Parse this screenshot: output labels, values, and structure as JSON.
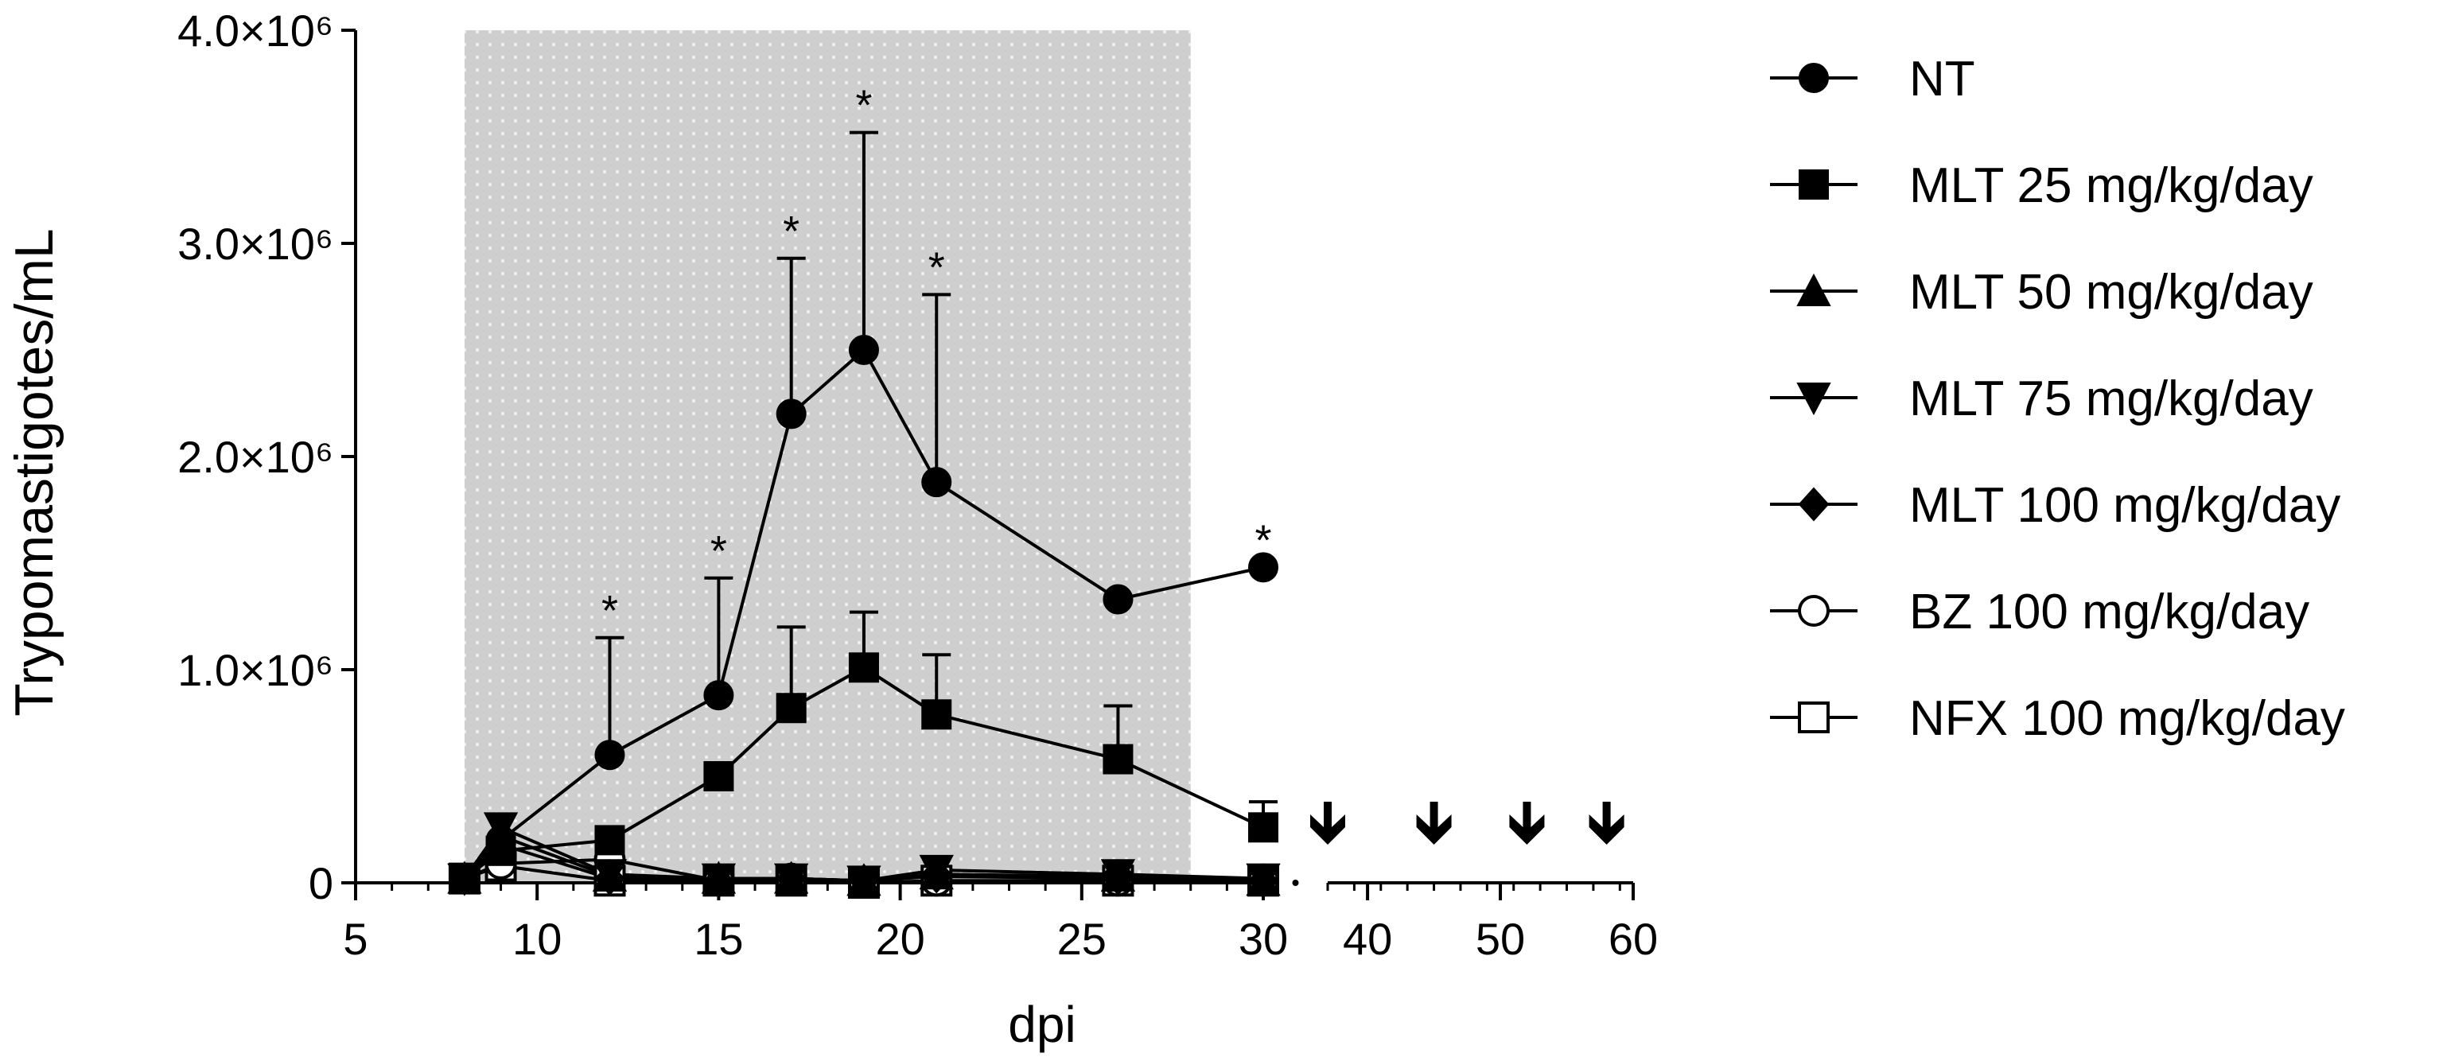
{
  "chart_data": {
    "type": "line",
    "title": "",
    "xlabel": "dpi",
    "ylabel": "Trypomastigotes/mL",
    "ylim": [
      0,
      4000000
    ],
    "y_ticks": [
      {
        "value": 0,
        "label": "0"
      },
      {
        "value": 1000000,
        "label": "1.0×10⁶"
      },
      {
        "value": 2000000,
        "label": "2.0×10⁶"
      },
      {
        "value": 3000000,
        "label": "3.0×10⁶"
      },
      {
        "value": 4000000,
        "label": "4.0×10⁶"
      }
    ],
    "x_axis_segments": [
      {
        "range": [
          5,
          30
        ],
        "ticks": [
          5,
          10,
          15,
          20,
          25,
          30
        ],
        "tick_labels": [
          "5",
          "10",
          "15",
          "20",
          "25",
          "30"
        ]
      },
      {
        "range": [
          37,
          60
        ],
        "ticks": [
          40,
          50,
          60
        ],
        "tick_labels": [
          "40",
          "50",
          "60"
        ]
      }
    ],
    "shaded_region": {
      "x": [
        8,
        28
      ],
      "pattern": "dotted-gray"
    },
    "series": [
      {
        "name": "NT",
        "marker": "circle-filled",
        "x": [
          9,
          12,
          15,
          17,
          19,
          21,
          26,
          30
        ],
        "y": [
          200000,
          600000,
          880000,
          2200000,
          2500000,
          1880000,
          1330000,
          1480000
        ],
        "error_plus": [
          null,
          550000,
          550000,
          730000,
          1020000,
          880000,
          null,
          null
        ],
        "significant": [
          false,
          true,
          true,
          true,
          true,
          true,
          false,
          true
        ]
      },
      {
        "name": "MLT 25 mg/kg/day",
        "marker": "square-filled",
        "x": [
          8,
          9,
          12,
          15,
          17,
          19,
          21,
          26,
          30
        ],
        "y": [
          20000,
          150000,
          200000,
          500000,
          820000,
          1010000,
          790000,
          580000,
          260000
        ],
        "error_plus": [
          null,
          null,
          null,
          null,
          380000,
          260000,
          280000,
          250000,
          120000
        ]
      },
      {
        "name": "MLT 50 mg/kg/day",
        "marker": "triangle-up-filled",
        "x": [
          8,
          9,
          12,
          15,
          17,
          19,
          21,
          26,
          30
        ],
        "y": [
          20000,
          220000,
          30000,
          20000,
          20000,
          10000,
          40000,
          30000,
          10000
        ]
      },
      {
        "name": "MLT 75 mg/kg/day",
        "marker": "triangle-down-filled",
        "x": [
          8,
          9,
          12,
          15,
          17,
          19,
          21,
          26,
          30
        ],
        "y": [
          20000,
          260000,
          40000,
          20000,
          20000,
          10000,
          60000,
          40000,
          20000
        ]
      },
      {
        "name": "MLT 100 mg/kg/day",
        "marker": "diamond-filled",
        "x": [
          8,
          9,
          12,
          15,
          17,
          19,
          21,
          26,
          30
        ],
        "y": [
          20000,
          180000,
          20000,
          10000,
          20000,
          10000,
          30000,
          20000,
          10000
        ]
      },
      {
        "name": "BZ 100 mg/kg/day",
        "marker": "circle-open",
        "x": [
          8,
          9,
          12,
          15,
          17,
          19,
          21,
          26,
          30
        ],
        "y": [
          20000,
          90000,
          110000,
          10000,
          20000,
          0,
          10000,
          10000,
          10000
        ]
      },
      {
        "name": "NFX 100 mg/kg/day",
        "marker": "square-open",
        "x": [
          8,
          9,
          12,
          15,
          17,
          19,
          21,
          26,
          30
        ],
        "y": [
          20000,
          80000,
          10000,
          10000,
          10000,
          0,
          10000,
          10000,
          10000
        ]
      }
    ],
    "annotations": {
      "significance_symbol": "*",
      "arrows_down_x": [
        37,
        45,
        52,
        58
      ]
    },
    "legend": {
      "placement": "right"
    }
  }
}
